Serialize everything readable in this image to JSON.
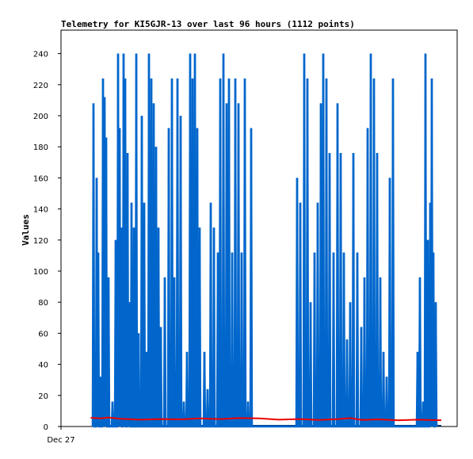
{
  "chart_data": {
    "type": "line",
    "title": "Telemetry for KI5GJR-13 over last 96 hours (1112 points)",
    "ylabel": "Values",
    "xlabel": "",
    "x_tick_labels": [
      "Dec 27"
    ],
    "ylim": [
      0,
      250
    ],
    "y_ticks": [
      0,
      20,
      40,
      60,
      80,
      100,
      120,
      140,
      160,
      180,
      200,
      220,
      240
    ],
    "grid": false,
    "legend": "none",
    "series": [
      {
        "color": "#0066cc",
        "style": "vertical-spikes",
        "x_range_fraction": [
          0.08,
          0.96
        ],
        "spikes": [
          {
            "x": 0.082,
            "y": 208
          },
          {
            "x": 0.09,
            "y": 160
          },
          {
            "x": 0.094,
            "y": 112
          },
          {
            "x": 0.1,
            "y": 32
          },
          {
            "x": 0.106,
            "y": 224
          },
          {
            "x": 0.11,
            "y": 212
          },
          {
            "x": 0.114,
            "y": 186
          },
          {
            "x": 0.12,
            "y": 96
          },
          {
            "x": 0.13,
            "y": 16
          },
          {
            "x": 0.138,
            "y": 120
          },
          {
            "x": 0.144,
            "y": 240
          },
          {
            "x": 0.148,
            "y": 192
          },
          {
            "x": 0.152,
            "y": 128
          },
          {
            "x": 0.158,
            "y": 240
          },
          {
            "x": 0.162,
            "y": 224
          },
          {
            "x": 0.168,
            "y": 176
          },
          {
            "x": 0.172,
            "y": 80
          },
          {
            "x": 0.178,
            "y": 144
          },
          {
            "x": 0.184,
            "y": 128
          },
          {
            "x": 0.19,
            "y": 240
          },
          {
            "x": 0.196,
            "y": 60
          },
          {
            "x": 0.204,
            "y": 200
          },
          {
            "x": 0.21,
            "y": 144
          },
          {
            "x": 0.216,
            "y": 48
          },
          {
            "x": 0.222,
            "y": 240
          },
          {
            "x": 0.228,
            "y": 224
          },
          {
            "x": 0.234,
            "y": 208
          },
          {
            "x": 0.24,
            "y": 180
          },
          {
            "x": 0.246,
            "y": 128
          },
          {
            "x": 0.252,
            "y": 64
          },
          {
            "x": 0.262,
            "y": 96
          },
          {
            "x": 0.272,
            "y": 192
          },
          {
            "x": 0.28,
            "y": 224
          },
          {
            "x": 0.286,
            "y": 96
          },
          {
            "x": 0.294,
            "y": 224
          },
          {
            "x": 0.302,
            "y": 200
          },
          {
            "x": 0.31,
            "y": 16
          },
          {
            "x": 0.318,
            "y": 48
          },
          {
            "x": 0.326,
            "y": 240
          },
          {
            "x": 0.332,
            "y": 224
          },
          {
            "x": 0.338,
            "y": 240
          },
          {
            "x": 0.344,
            "y": 192
          },
          {
            "x": 0.35,
            "y": 128
          },
          {
            "x": 0.362,
            "y": 48
          },
          {
            "x": 0.37,
            "y": 24
          },
          {
            "x": 0.378,
            "y": 144
          },
          {
            "x": 0.386,
            "y": 128
          },
          {
            "x": 0.396,
            "y": 112
          },
          {
            "x": 0.402,
            "y": 224
          },
          {
            "x": 0.41,
            "y": 240
          },
          {
            "x": 0.418,
            "y": 208
          },
          {
            "x": 0.424,
            "y": 224
          },
          {
            "x": 0.432,
            "y": 112
          },
          {
            "x": 0.44,
            "y": 224
          },
          {
            "x": 0.448,
            "y": 208
          },
          {
            "x": 0.456,
            "y": 112
          },
          {
            "x": 0.464,
            "y": 224
          },
          {
            "x": 0.472,
            "y": 16
          },
          {
            "x": 0.48,
            "y": 192
          },
          {
            "x": 0.596,
            "y": 160
          },
          {
            "x": 0.604,
            "y": 144
          },
          {
            "x": 0.614,
            "y": 240
          },
          {
            "x": 0.622,
            "y": 224
          },
          {
            "x": 0.63,
            "y": 80
          },
          {
            "x": 0.64,
            "y": 112
          },
          {
            "x": 0.648,
            "y": 144
          },
          {
            "x": 0.656,
            "y": 208
          },
          {
            "x": 0.662,
            "y": 240
          },
          {
            "x": 0.67,
            "y": 224
          },
          {
            "x": 0.678,
            "y": 176
          },
          {
            "x": 0.688,
            "y": 112
          },
          {
            "x": 0.698,
            "y": 208
          },
          {
            "x": 0.706,
            "y": 176
          },
          {
            "x": 0.714,
            "y": 112
          },
          {
            "x": 0.722,
            "y": 56
          },
          {
            "x": 0.73,
            "y": 80
          },
          {
            "x": 0.738,
            "y": 176
          },
          {
            "x": 0.748,
            "y": 112
          },
          {
            "x": 0.758,
            "y": 64
          },
          {
            "x": 0.766,
            "y": 96
          },
          {
            "x": 0.774,
            "y": 192
          },
          {
            "x": 0.782,
            "y": 240
          },
          {
            "x": 0.79,
            "y": 224
          },
          {
            "x": 0.798,
            "y": 176
          },
          {
            "x": 0.806,
            "y": 96
          },
          {
            "x": 0.814,
            "y": 48
          },
          {
            "x": 0.822,
            "y": 32
          },
          {
            "x": 0.83,
            "y": 160
          },
          {
            "x": 0.838,
            "y": 224
          },
          {
            "x": 0.9,
            "y": 48
          },
          {
            "x": 0.906,
            "y": 96
          },
          {
            "x": 0.914,
            "y": 16
          },
          {
            "x": 0.92,
            "y": 240
          },
          {
            "x": 0.926,
            "y": 120
          },
          {
            "x": 0.932,
            "y": 144
          },
          {
            "x": 0.936,
            "y": 224
          },
          {
            "x": 0.94,
            "y": 112
          },
          {
            "x": 0.946,
            "y": 80
          }
        ]
      },
      {
        "color": "#ee0000",
        "style": "line",
        "points": [
          {
            "x": 0.075,
            "y": 5.6
          },
          {
            "x": 0.1,
            "y": 5.2
          },
          {
            "x": 0.12,
            "y": 5.8
          },
          {
            "x": 0.15,
            "y": 5.0
          },
          {
            "x": 0.2,
            "y": 4.4
          },
          {
            "x": 0.25,
            "y": 4.8
          },
          {
            "x": 0.3,
            "y": 4.6
          },
          {
            "x": 0.35,
            "y": 5.2
          },
          {
            "x": 0.4,
            "y": 4.8
          },
          {
            "x": 0.45,
            "y": 5.4
          },
          {
            "x": 0.5,
            "y": 5.2
          },
          {
            "x": 0.55,
            "y": 4.4
          },
          {
            "x": 0.6,
            "y": 4.8
          },
          {
            "x": 0.65,
            "y": 4.2
          },
          {
            "x": 0.7,
            "y": 4.8
          },
          {
            "x": 0.73,
            "y": 5.4
          },
          {
            "x": 0.76,
            "y": 4.2
          },
          {
            "x": 0.8,
            "y": 4.6
          },
          {
            "x": 0.85,
            "y": 4.0
          },
          {
            "x": 0.9,
            "y": 4.4
          },
          {
            "x": 0.96,
            "y": 4.0
          }
        ]
      }
    ]
  }
}
